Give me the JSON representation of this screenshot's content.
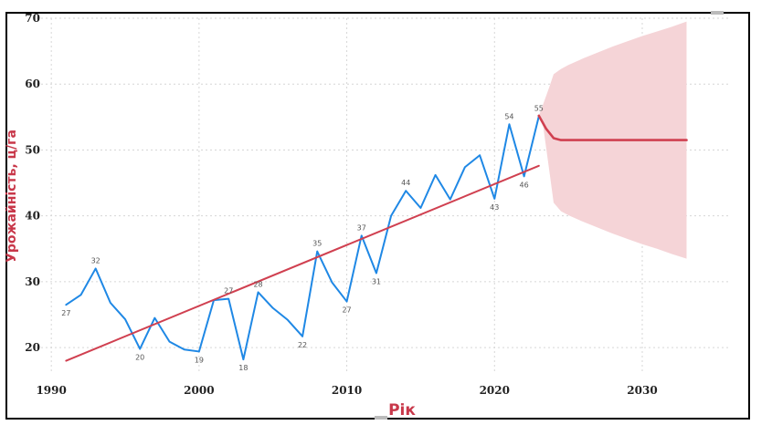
{
  "chart_data": {
    "type": "line",
    "xlabel": "Рік",
    "ylabel": "Урожайність, ц/га",
    "xlim": [
      1989,
      2036
    ],
    "ylim": [
      16,
      70
    ],
    "x_ticks": [
      1990,
      2000,
      2010,
      2020,
      2030
    ],
    "y_ticks": [
      20,
      30,
      40,
      50,
      60,
      70
    ],
    "grid": true,
    "series": [
      {
        "kind": "actual",
        "color": "#1f88e5",
        "x": [
          1991,
          1992,
          1993,
          1994,
          1995,
          1996,
          1997,
          1998,
          1999,
          2000,
          2001,
          2002,
          2003,
          2004,
          2005,
          2006,
          2007,
          2008,
          2009,
          2010,
          2011,
          2012,
          2013,
          2014,
          2015,
          2016,
          2017,
          2018,
          2019,
          2020,
          2021,
          2022,
          2023
        ],
        "y": [
          26.5,
          28,
          32,
          26.8,
          24.3,
          19.8,
          24.5,
          20.9,
          19.7,
          19.4,
          27.2,
          27.4,
          18.2,
          28.4,
          26,
          24.2,
          21.7,
          34.6,
          29.9,
          27,
          37,
          31.3,
          40,
          43.8,
          41.2,
          46.2,
          42.5,
          47.4,
          49.2,
          42.6,
          53.9,
          46,
          55.1
        ]
      },
      {
        "kind": "trend",
        "color": "#d04050",
        "x": [
          1991,
          2023
        ],
        "y": [
          18,
          47.6
        ]
      },
      {
        "kind": "forecast",
        "color": "#d04050",
        "x": [
          2023,
          2023.5,
          2024,
          2024.5,
          2025,
          2026,
          2027,
          2028,
          2029,
          2030,
          2031,
          2032,
          2033
        ],
        "y": [
          55.2,
          53.2,
          51.8,
          51.5,
          51.5,
          51.5,
          51.5,
          51.5,
          51.5,
          51.5,
          51.5,
          51.5,
          51.5
        ],
        "band_color": "#f5d4d7",
        "band_x": [
          2023,
          2023.3,
          2023.7,
          2024,
          2024.5,
          2025,
          2026,
          2027,
          2028,
          2029,
          2030,
          2031,
          2032,
          2033
        ],
        "band_upper": [
          55.2,
          57,
          59.5,
          61.5,
          62.3,
          62.9,
          63.9,
          64.8,
          65.7,
          66.5,
          67.3,
          68,
          68.7,
          69.5
        ],
        "band_lower": [
          55.2,
          53.5,
          47,
          42,
          40.7,
          40.1,
          39.1,
          38.2,
          37.3,
          36.5,
          35.7,
          35,
          34.2,
          33.5
        ]
      }
    ],
    "data_labels": [
      {
        "x": 1991,
        "y": 26.5,
        "text": "27",
        "pos": "below"
      },
      {
        "x": 1993,
        "y": 32,
        "text": "32",
        "pos": "above"
      },
      {
        "x": 1996,
        "y": 19.8,
        "text": "20",
        "pos": "below"
      },
      {
        "x": 2000,
        "y": 19.4,
        "text": "19",
        "pos": "below"
      },
      {
        "x": 2002,
        "y": 27.4,
        "text": "27",
        "pos": "above"
      },
      {
        "x": 2003,
        "y": 18.2,
        "text": "18",
        "pos": "below"
      },
      {
        "x": 2004,
        "y": 28.4,
        "text": "28",
        "pos": "above"
      },
      {
        "x": 2007,
        "y": 21.7,
        "text": "22",
        "pos": "below"
      },
      {
        "x": 2008,
        "y": 34.6,
        "text": "35",
        "pos": "above"
      },
      {
        "x": 2010,
        "y": 27,
        "text": "27",
        "pos": "below"
      },
      {
        "x": 2011,
        "y": 37,
        "text": "37",
        "pos": "above"
      },
      {
        "x": 2012,
        "y": 31.3,
        "text": "31",
        "pos": "below"
      },
      {
        "x": 2014,
        "y": 43.8,
        "text": "44",
        "pos": "above"
      },
      {
        "x": 2020,
        "y": 42.6,
        "text": "43",
        "pos": "below"
      },
      {
        "x": 2021,
        "y": 53.9,
        "text": "54",
        "pos": "above"
      },
      {
        "x": 2022,
        "y": 46,
        "text": "46",
        "pos": "below"
      },
      {
        "x": 2023,
        "y": 55.1,
        "text": "55",
        "pos": "above"
      }
    ]
  }
}
